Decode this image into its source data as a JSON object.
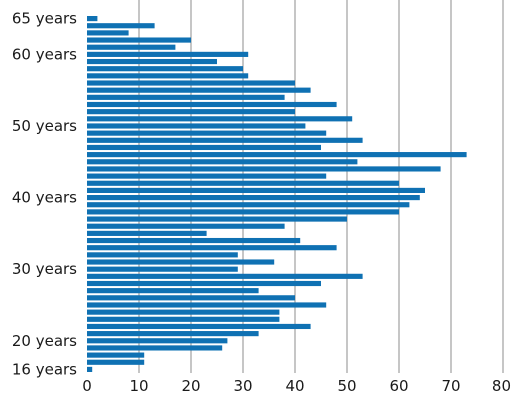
{
  "chart_data": {
    "type": "bar",
    "orientation": "horizontal",
    "color": "#0f71b3",
    "grid": true,
    "xlim": [
      0,
      80
    ],
    "x_ticks": [
      0,
      10,
      20,
      30,
      40,
      50,
      60,
      70,
      80
    ],
    "x_tick_labels": [
      "0",
      "10",
      "20",
      "30",
      "40",
      "50",
      "60",
      "70",
      "80"
    ],
    "y_tick_labels": [
      {
        "age": 65,
        "label": "65 years"
      },
      {
        "age": 60,
        "label": "60 years"
      },
      {
        "age": 50,
        "label": "50 years"
      },
      {
        "age": 40,
        "label": "40 years"
      },
      {
        "age": 30,
        "label": "30 years"
      },
      {
        "age": 20,
        "label": "20 years"
      },
      {
        "age": 16,
        "label": "16 years"
      }
    ],
    "categories": [
      65,
      64,
      63,
      62,
      61,
      60,
      59,
      58,
      57,
      56,
      55,
      54,
      53,
      52,
      51,
      50,
      49,
      48,
      47,
      46,
      45,
      44,
      43,
      42,
      41,
      40,
      39,
      38,
      37,
      36,
      35,
      34,
      33,
      32,
      31,
      30,
      29,
      28,
      27,
      26,
      25,
      24,
      23,
      22,
      21,
      20,
      19,
      18,
      17,
      16
    ],
    "values": [
      2,
      13,
      8,
      20,
      17,
      31,
      25,
      30,
      31,
      40,
      43,
      38,
      48,
      40,
      51,
      42,
      46,
      53,
      45,
      73,
      52,
      68,
      46,
      60,
      65,
      64,
      62,
      60,
      50,
      38,
      23,
      41,
      48,
      29,
      36,
      29,
      53,
      45,
      33,
      40,
      46,
      37,
      37,
      43,
      33,
      27,
      26,
      11,
      11,
      1
    ]
  }
}
